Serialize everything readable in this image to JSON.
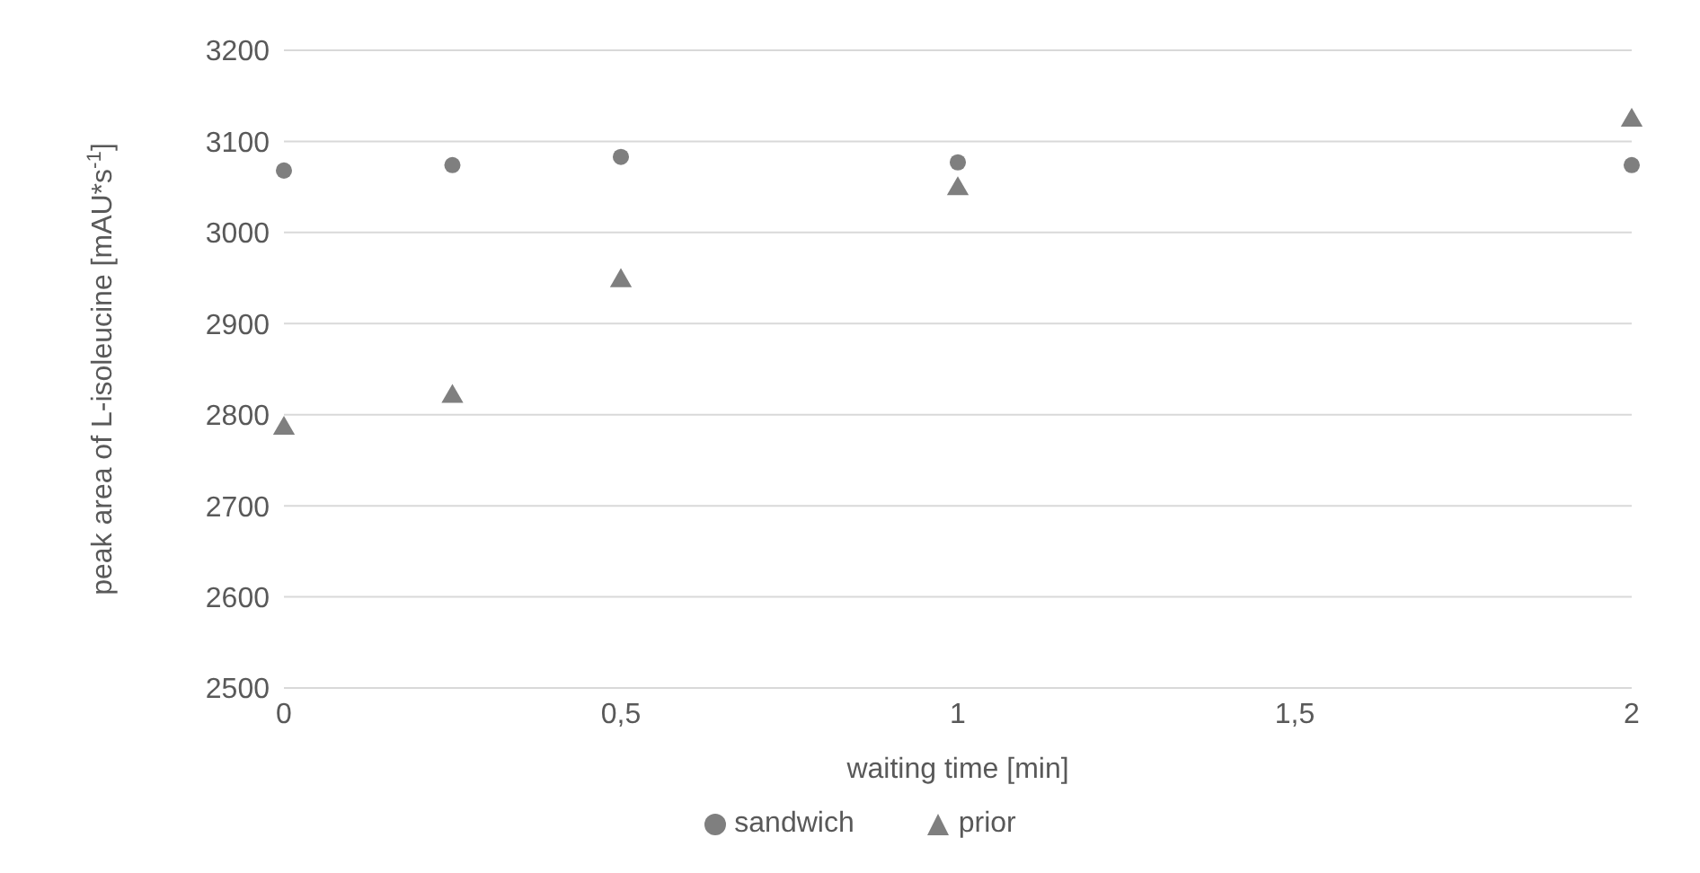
{
  "chart_data": {
    "type": "scatter",
    "xlabel": "waiting time [min]",
    "ylabel": "peak area of L-isoleucine [mAU*s$^{-1}$]",
    "x": [
      0,
      0.25,
      0.5,
      1,
      2
    ],
    "series": [
      {
        "name": "sandwich",
        "color": "#7f7f7f",
        "marker": "circle",
        "values": [
          3068,
          3074,
          3083,
          3077,
          3074
        ]
      },
      {
        "name": "prior",
        "color": "#7f7f7f",
        "marker": "triangle",
        "values": [
          2785,
          2820,
          2947,
          3048,
          3123
        ]
      }
    ],
    "xlim": [
      0,
      2
    ],
    "xticks": [
      0,
      {
        "value": 0.5,
        "label": "0,5"
      },
      1,
      {
        "value": 1.5,
        "label": "1,5"
      },
      2
    ],
    "ylim": [
      2500,
      3200
    ],
    "yticks": [
      2500,
      2600,
      2700,
      2800,
      2900,
      3000,
      3100,
      3200
    ],
    "grid": "y",
    "legend": "bottom"
  }
}
